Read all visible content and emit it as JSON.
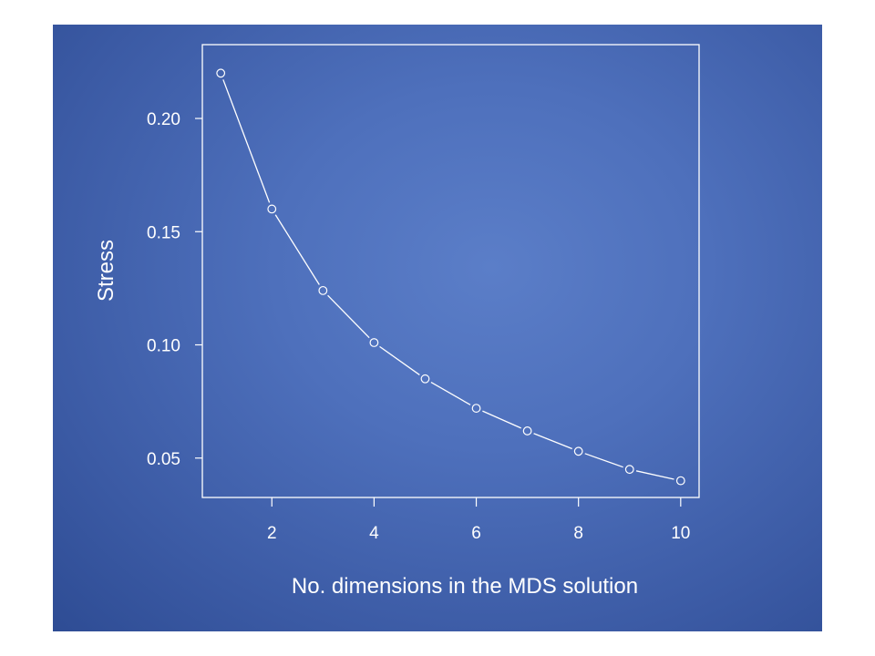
{
  "chart_data": {
    "type": "line",
    "title": "",
    "xlabel": "No. dimensions in the MDS solution",
    "ylabel": "Stress",
    "x": [
      1,
      2,
      3,
      4,
      5,
      6,
      7,
      8,
      9,
      10
    ],
    "series": [
      {
        "values": [
          0.22,
          0.16,
          0.124,
          0.101,
          0.085,
          0.072,
          0.062,
          0.053,
          0.045,
          0.04
        ]
      }
    ],
    "xticks": [
      2,
      4,
      6,
      8,
      10
    ],
    "xtick_labels": [
      "2",
      "4",
      "6",
      "8",
      "10"
    ],
    "yticks": [
      0.05,
      0.1,
      0.15,
      0.2
    ],
    "ytick_labels": [
      "0.05",
      "0.10",
      "0.15",
      "0.20"
    ],
    "xlim": [
      0.64,
      10.36
    ],
    "ylim": [
      0.0326,
      0.2326
    ],
    "grid": false,
    "markers": "open-circle",
    "line_style": "line-with-gaps-at-points",
    "colors": {
      "foreground": "#ffffff",
      "background": "#4e70bc"
    }
  }
}
